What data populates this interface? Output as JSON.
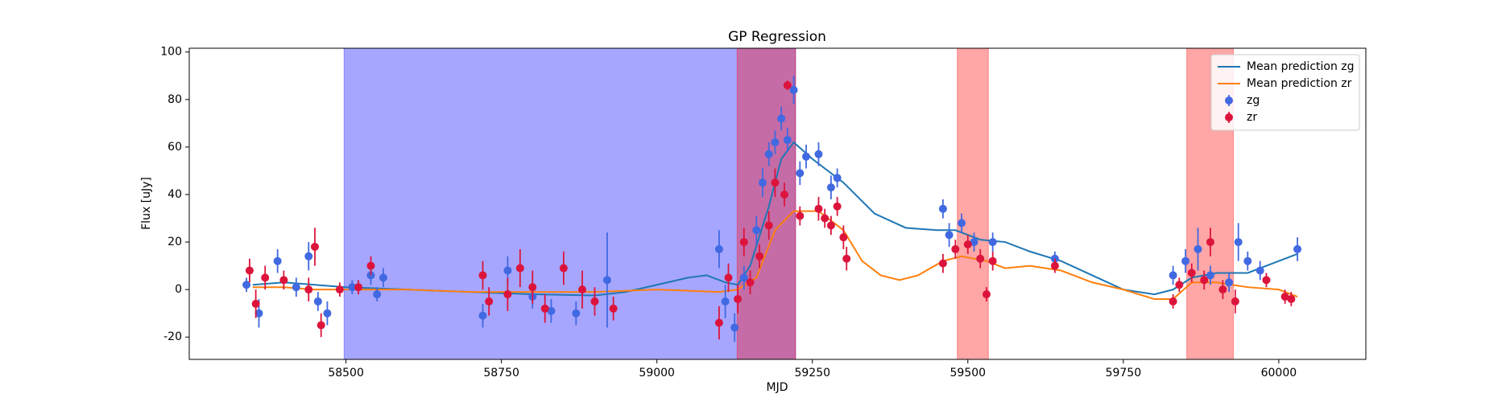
{
  "chart_data": {
    "type": "errorbar-gp",
    "title": "GP Regression",
    "xlabel": "MJD",
    "ylabel": "Flux [uJy]",
    "xlim": [
      58248,
      60140
    ],
    "ylim": [
      -29.4,
      101.6
    ],
    "xticks": [
      58500,
      58750,
      59000,
      59250,
      59500,
      59750,
      60000
    ],
    "yticks": [
      -20,
      0,
      20,
      40,
      60,
      80,
      100
    ],
    "legend": "upper right",
    "spans": [
      {
        "xmin": 58497,
        "xmax": 59223,
        "color": "#0000ff",
        "alpha": 0.35
      },
      {
        "xmin": 59129,
        "xmax": 59223,
        "color": "#ff0000",
        "alpha": 0.35
      },
      {
        "xmin": 59483,
        "xmax": 59533,
        "color": "#ff0000",
        "alpha": 0.35
      },
      {
        "xmin": 59852,
        "xmax": 59927,
        "color": "#ff0000",
        "alpha": 0.35
      }
    ],
    "series": [
      {
        "name": "Mean prediction zg",
        "kind": "line",
        "color": "#1f77b4",
        "x": [
          58350,
          58400,
          58450,
          58500,
          58600,
          58700,
          58800,
          58900,
          58950,
          59000,
          59050,
          59080,
          59110,
          59130,
          59150,
          59180,
          59200,
          59220,
          59250,
          59300,
          59350,
          59400,
          59450,
          59480,
          59520,
          59560,
          59600,
          59650,
          59700,
          59750,
          59800,
          59830,
          59860,
          59900,
          59950,
          60000,
          60030
        ],
        "values": [
          2,
          3,
          2,
          1,
          0,
          -1,
          -2,
          -2.5,
          -1,
          2,
          5,
          6,
          3,
          2,
          10,
          35,
          55,
          62,
          55,
          45,
          32,
          26,
          25,
          25,
          21,
          20,
          16,
          12,
          6,
          0,
          -2,
          0,
          5,
          7,
          7,
          12,
          15
        ]
      },
      {
        "name": "Mean prediction zr",
        "kind": "line",
        "color": "#ff7f0e",
        "x": [
          58350,
          58400,
          58450,
          58500,
          58600,
          58700,
          58800,
          58900,
          59000,
          59050,
          59100,
          59130,
          59160,
          59190,
          59220,
          59260,
          59300,
          59330,
          59360,
          59390,
          59420,
          59460,
          59490,
          59530,
          59560,
          59600,
          59650,
          59700,
          59750,
          59800,
          59830,
          59860,
          59900,
          59950,
          60000,
          60030
        ],
        "values": [
          1,
          1,
          0,
          0,
          0,
          -1,
          -1,
          -1,
          0,
          -0.5,
          -1,
          0,
          5,
          25,
          33,
          33,
          25,
          12,
          6,
          4,
          6,
          12,
          14,
          12,
          9,
          10,
          8,
          3,
          0,
          -4,
          -4,
          3,
          3,
          1,
          0,
          -3
        ]
      },
      {
        "name": "zg",
        "kind": "errorbar",
        "color": "#4169e1",
        "x": [
          58340,
          58360,
          58390,
          58420,
          58440,
          58455,
          58470,
          58510,
          58540,
          58550,
          58560,
          58720,
          58760,
          58800,
          58830,
          58870,
          58920,
          59100,
          59110,
          59125,
          59140,
          59160,
          59170,
          59180,
          59190,
          59200,
          59210,
          59220,
          59230,
          59240,
          59260,
          59280,
          59290,
          59460,
          59470,
          59490,
          59510,
          59540,
          59640,
          59830,
          59850,
          59870,
          59890,
          59920,
          59935,
          59950,
          59970,
          60030
        ],
        "values": [
          2,
          -10,
          12,
          1,
          14,
          -5,
          -10,
          1,
          6,
          -2,
          5,
          -11,
          8,
          -3,
          -9,
          -10,
          4,
          17,
          -5,
          -16,
          5,
          25,
          45,
          57,
          62,
          72,
          63,
          84,
          49,
          56,
          57,
          43,
          47,
          34,
          23,
          28,
          20,
          20,
          13,
          6,
          12,
          17,
          6,
          3,
          20,
          12,
          8,
          17
        ],
        "errors": [
          3,
          6,
          5,
          4,
          6,
          4,
          5,
          3,
          4,
          3,
          4,
          5,
          6,
          5,
          5,
          5,
          20,
          8,
          7,
          6,
          5,
          6,
          6,
          5,
          5,
          5,
          5,
          6,
          5,
          5,
          5,
          5,
          4,
          4,
          5,
          4,
          4,
          4,
          3,
          4,
          5,
          9,
          4,
          4,
          8,
          4,
          4,
          5
        ]
      },
      {
        "name": "zr",
        "kind": "errorbar",
        "color": "#dc143c",
        "x": [
          58345,
          58355,
          58370,
          58400,
          58440,
          58450,
          58460,
          58490,
          58520,
          58540,
          58720,
          58730,
          58760,
          58780,
          58800,
          58820,
          58850,
          58880,
          58900,
          58930,
          59100,
          59115,
          59130,
          59140,
          59150,
          59165,
          59180,
          59190,
          59205,
          59210,
          59230,
          59260,
          59270,
          59280,
          59290,
          59300,
          59305,
          59460,
          59480,
          59500,
          59520,
          59530,
          59540,
          59640,
          59830,
          59840,
          59860,
          59880,
          59890,
          59910,
          59930,
          59980,
          60010,
          60020
        ],
        "values": [
          8,
          -6,
          5,
          4,
          0,
          18,
          -15,
          0,
          1,
          10,
          6,
          -5,
          -2,
          9,
          1,
          -8,
          9,
          0,
          -5,
          -8,
          -14,
          5,
          -4,
          20,
          3,
          14,
          27,
          45,
          40,
          86,
          31,
          34,
          30,
          27,
          35,
          22,
          13,
          11,
          17,
          19,
          13,
          -2,
          12,
          10,
          -5,
          2,
          7,
          4,
          20,
          0,
          -5,
          4,
          -3,
          -4
        ],
        "errors": [
          5,
          6,
          5,
          4,
          5,
          8,
          5,
          3,
          3,
          4,
          6,
          6,
          7,
          8,
          7,
          6,
          7,
          8,
          6,
          5,
          7,
          6,
          6,
          6,
          5,
          5,
          6,
          6,
          5,
          2,
          4,
          5,
          4,
          4,
          4,
          5,
          5,
          4,
          4,
          4,
          4,
          3,
          4,
          3,
          3,
          3,
          4,
          4,
          6,
          4,
          5,
          3,
          3,
          3
        ]
      }
    ]
  }
}
